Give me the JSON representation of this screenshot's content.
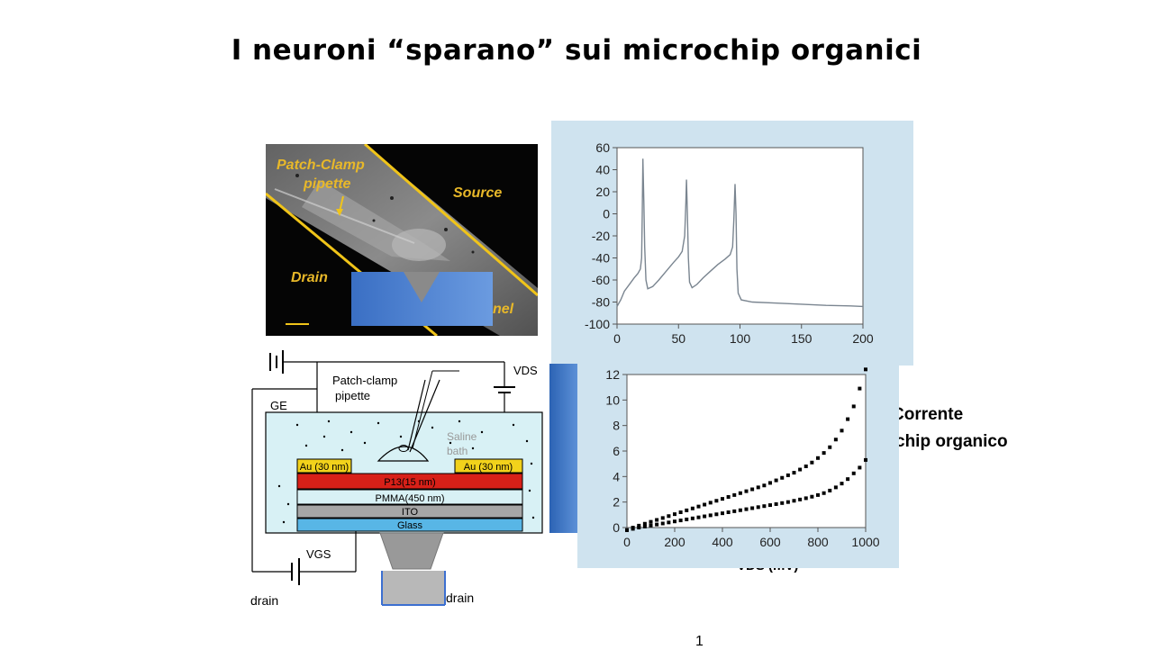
{
  "slide": {
    "title": "I neuroni “sparano” sui microchip organici",
    "page_number": "1"
  },
  "photo": {
    "labels": {
      "patch_clamp": "Patch-Clamp",
      "pipette": "pipette",
      "source": "Source",
      "drain": "Drain",
      "channel_partial": "nel"
    }
  },
  "schematic": {
    "patch_clamp": "Patch-clamp",
    "pipette": "pipette",
    "vds": "VDS",
    "ge": "GE",
    "saline": "Saline",
    "bath": "bath",
    "au_left": "Au (30 nm)",
    "au_right": "Au (30 nm)",
    "p13": "P13(15 nm)",
    "pmma": "PMMA(450 nm)",
    "ito": "ITO",
    "glass": "Glass",
    "vgs": "VGS",
    "drain_left": "drain",
    "drain_right": "drain"
  },
  "side_text": {
    "line1": "Corrente",
    "line2": "chip organico",
    "axis_partial": "VDS (mV)"
  },
  "chart_data": [
    {
      "type": "line",
      "xlim": [
        0,
        200
      ],
      "ylim": [
        -100,
        60
      ],
      "x_ticks": [
        0,
        50,
        100,
        150,
        200
      ],
      "y_ticks": [
        -100,
        -80,
        -60,
        -40,
        -20,
        0,
        20,
        40,
        60
      ],
      "series": [
        {
          "points": [
            [
              0,
              -84
            ],
            [
              3,
              -78
            ],
            [
              6,
              -70
            ],
            [
              10,
              -64
            ],
            [
              14,
              -58
            ],
            [
              17,
              -54
            ],
            [
              19,
              -50
            ],
            [
              20,
              -40
            ],
            [
              20.5,
              0
            ],
            [
              21,
              50
            ],
            [
              21.8,
              10
            ],
            [
              22.5,
              -30
            ],
            [
              23.5,
              -60
            ],
            [
              25,
              -68
            ],
            [
              29,
              -66
            ],
            [
              34,
              -60
            ],
            [
              40,
              -52
            ],
            [
              46,
              -44
            ],
            [
              50,
              -39
            ],
            [
              53,
              -34
            ],
            [
              55,
              -20
            ],
            [
              56,
              10
            ],
            [
              56.5,
              31
            ],
            [
              57.2,
              0
            ],
            [
              58,
              -40
            ],
            [
              59,
              -62
            ],
            [
              61,
              -67
            ],
            [
              65,
              -64
            ],
            [
              70,
              -58
            ],
            [
              76,
              -52
            ],
            [
              82,
              -46
            ],
            [
              88,
              -41
            ],
            [
              92,
              -37
            ],
            [
              94,
              -30
            ],
            [
              95,
              -5
            ],
            [
              96,
              27
            ],
            [
              96.8,
              0
            ],
            [
              97.5,
              -50
            ],
            [
              98.5,
              -72
            ],
            [
              101,
              -78
            ],
            [
              110,
              -80
            ],
            [
              130,
              -81
            ],
            [
              150,
              -82
            ],
            [
              170,
              -83
            ],
            [
              190,
              -83.5
            ],
            [
              200,
              -84
            ]
          ],
          "color": "#7a8590"
        }
      ]
    },
    {
      "type": "scatter",
      "xlim": [
        0,
        1000
      ],
      "ylim": [
        0,
        12
      ],
      "x_ticks": [
        0,
        200,
        400,
        600,
        800,
        1000
      ],
      "y_ticks": [
        0,
        2,
        4,
        6,
        8,
        10,
        12
      ],
      "series": [
        {
          "x": [
            0,
            25,
            50,
            75,
            100,
            125,
            150,
            175,
            200,
            225,
            250,
            275,
            300,
            325,
            350,
            375,
            400,
            425,
            450,
            475,
            500,
            525,
            550,
            575,
            600,
            625,
            650,
            675,
            700,
            725,
            750,
            775,
            800,
            825,
            850,
            875,
            900,
            925,
            950,
            975,
            1000
          ],
          "y": [
            -0.2,
            0.0,
            0.15,
            0.3,
            0.45,
            0.6,
            0.75,
            0.9,
            1.05,
            1.2,
            1.35,
            1.5,
            1.65,
            1.8,
            1.95,
            2.1,
            2.25,
            2.4,
            2.55,
            2.7,
            2.85,
            3.0,
            3.15,
            3.3,
            3.5,
            3.7,
            3.9,
            4.1,
            4.3,
            4.55,
            4.8,
            5.1,
            5.45,
            5.85,
            6.3,
            6.9,
            7.6,
            8.5,
            9.5,
            10.9,
            12.4
          ],
          "color": "#000000"
        },
        {
          "x": [
            0,
            25,
            50,
            75,
            100,
            125,
            150,
            175,
            200,
            225,
            250,
            275,
            300,
            325,
            350,
            375,
            400,
            425,
            450,
            475,
            500,
            525,
            550,
            575,
            600,
            625,
            650,
            675,
            700,
            725,
            750,
            775,
            800,
            825,
            850,
            875,
            900,
            925,
            950,
            975,
            1000
          ],
          "y": [
            -0.2,
            -0.1,
            0.0,
            0.08,
            0.16,
            0.24,
            0.32,
            0.4,
            0.48,
            0.56,
            0.64,
            0.72,
            0.8,
            0.88,
            0.96,
            1.04,
            1.12,
            1.2,
            1.28,
            1.36,
            1.44,
            1.52,
            1.6,
            1.68,
            1.76,
            1.84,
            1.92,
            2.0,
            2.1,
            2.2,
            2.3,
            2.42,
            2.55,
            2.7,
            2.9,
            3.15,
            3.45,
            3.8,
            4.25,
            4.7,
            5.3
          ],
          "color": "#000000"
        }
      ]
    }
  ]
}
